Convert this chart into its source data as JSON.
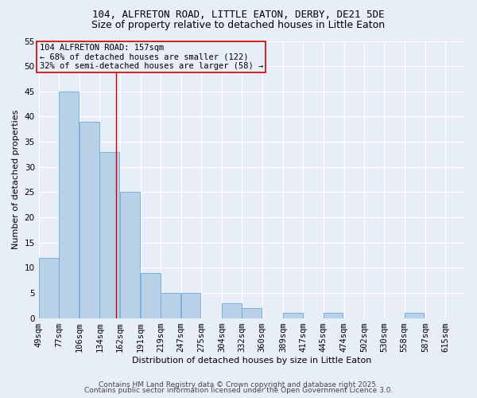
{
  "title1": "104, ALFRETON ROAD, LITTLE EATON, DERBY, DE21 5DE",
  "title2": "Size of property relative to detached houses in Little Eaton",
  "xlabel": "Distribution of detached houses by size in Little Eaton",
  "ylabel": "Number of detached properties",
  "bins": [
    49,
    77,
    106,
    134,
    162,
    191,
    219,
    247,
    275,
    304,
    332,
    360,
    389,
    417,
    445,
    474,
    502,
    530,
    558,
    587,
    615
  ],
  "values": [
    12,
    45,
    39,
    33,
    25,
    9,
    5,
    5,
    0,
    3,
    2,
    0,
    1,
    0,
    1,
    0,
    0,
    0,
    1,
    0,
    0
  ],
  "bar_color": "#b8d0e8",
  "bar_edge_color": "#6aaad4",
  "bg_color": "#e8eef8",
  "grid_color": "#ffffff",
  "red_line_x": 157,
  "red_line_color": "#cc0000",
  "annotation_title": "104 ALFRETON ROAD: 157sqm",
  "annotation_line1": "← 68% of detached houses are smaller (122)",
  "annotation_line2": "32% of semi-detached houses are larger (58) →",
  "annotation_box_color": "#cc0000",
  "ylim": [
    0,
    55
  ],
  "yticks": [
    0,
    5,
    10,
    15,
    20,
    25,
    30,
    35,
    40,
    45,
    50,
    55
  ],
  "footer1": "Contains HM Land Registry data © Crown copyright and database right 2025.",
  "footer2": "Contains public sector information licensed under the Open Government Licence 3.0.",
  "title1_fontsize": 9,
  "title2_fontsize": 9,
  "axis_fontsize": 8,
  "tick_fontsize": 7.5,
  "footer_fontsize": 6.5,
  "ann_fontsize": 7.5
}
